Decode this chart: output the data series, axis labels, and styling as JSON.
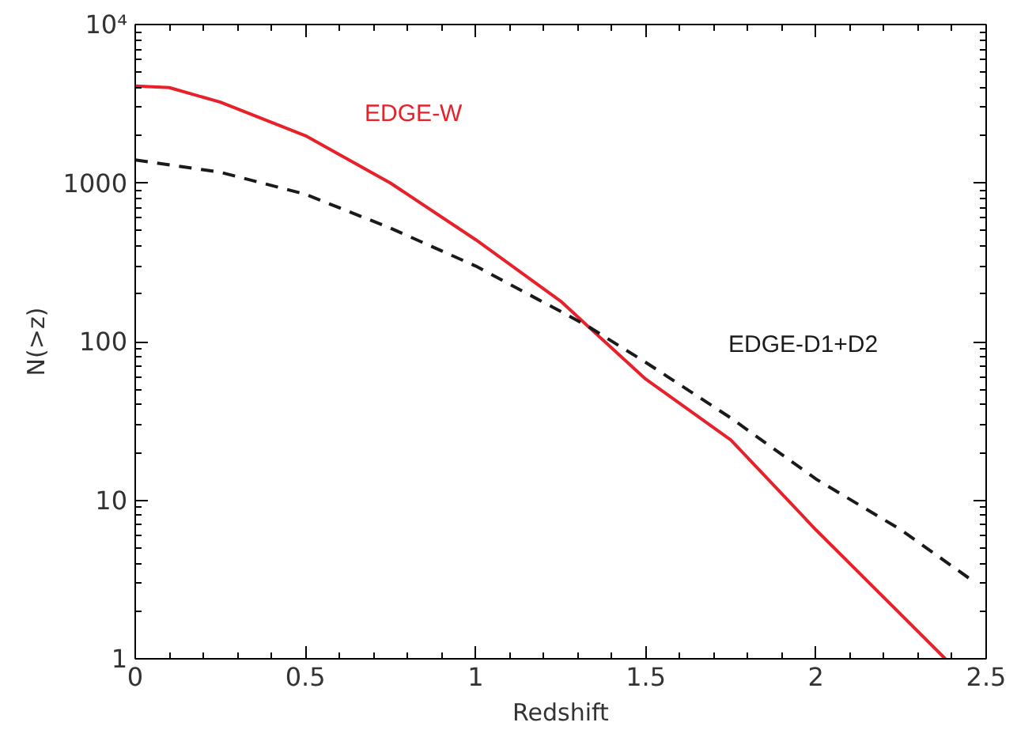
{
  "chart_data": {
    "type": "line",
    "xlabel": "Redshift",
    "ylabel": "N(>z)",
    "log": "y",
    "grid": false,
    "xlim": [
      0,
      2.5
    ],
    "xticks": [
      0,
      0.5,
      1,
      1.5,
      2,
      2.5
    ],
    "ylim": [
      1,
      10000
    ],
    "yticks": [
      1,
      10,
      100,
      1000,
      {
        "value": 10000,
        "label": "10⁴"
      }
    ],
    "series": [
      {
        "name": "EDGE-W",
        "color": "#e8202a",
        "line_style": "solid",
        "x": [
          0,
          0.1,
          0.25,
          0.5,
          0.75,
          1,
          1.25,
          1.33,
          1.5,
          1.75,
          2,
          2.25,
          2.38
        ],
        "values": [
          4100,
          4000,
          3240,
          1990,
          1000,
          440,
          180,
          125,
          58,
          24,
          6.5,
          1.9,
          1
        ]
      },
      {
        "name": "EDGE-D1+D2",
        "color": "#1a1a1a",
        "line_style": "dashed",
        "x": [
          0,
          0.25,
          0.5,
          0.75,
          1,
          1.25,
          1.33,
          1.5,
          1.75,
          2,
          2.25,
          2.47
        ],
        "values": [
          1400,
          1170,
          850,
          520,
          300,
          155,
          125,
          74,
          33,
          13.6,
          6.5,
          3
        ]
      }
    ]
  }
}
